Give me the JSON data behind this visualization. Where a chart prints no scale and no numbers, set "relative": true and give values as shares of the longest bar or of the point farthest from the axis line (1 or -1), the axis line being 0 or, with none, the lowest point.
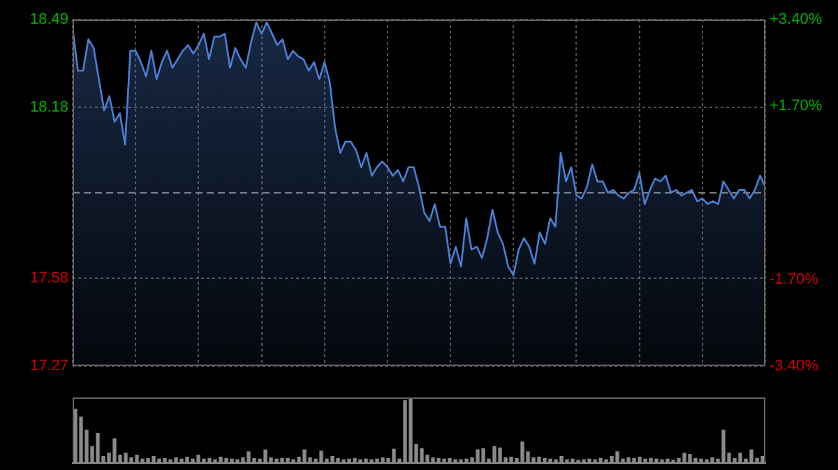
{
  "chart_data": [
    {
      "type": "area",
      "categories": [
        null,
        null,
        null,
        null,
        null,
        null,
        null,
        null,
        null,
        null,
        null,
        null,
        null,
        null,
        null,
        null,
        null,
        null,
        null,
        null,
        null,
        null,
        null,
        null,
        null,
        null,
        null,
        null,
        null,
        null,
        null,
        null,
        null,
        null,
        null,
        null,
        null,
        null,
        null,
        null,
        null,
        null,
        null,
        null,
        null,
        null,
        null,
        null,
        null,
        null,
        null,
        null,
        null,
        null,
        null,
        null,
        null,
        null,
        null,
        null,
        null,
        null,
        null,
        null,
        null,
        null,
        null,
        null,
        null,
        null,
        null,
        null,
        null,
        null,
        null,
        null,
        null,
        null,
        null,
        null,
        null,
        null,
        null,
        null,
        null,
        null,
        null,
        null,
        null,
        null,
        null,
        null,
        null,
        null,
        null,
        null,
        null,
        null,
        null,
        null,
        null,
        null,
        null,
        null,
        null,
        null,
        null,
        null,
        null,
        null,
        null,
        null,
        null,
        null,
        null,
        null,
        null,
        null,
        null,
        null,
        null,
        null,
        null,
        null,
        null,
        null,
        null,
        null,
        null,
        null,
        null,
        null,
        null
      ],
      "ylim": [
        17.27,
        18.49
      ],
      "yticks": [
        17.27,
        17.58,
        18.18,
        18.49
      ],
      "y2lim": [
        -3.4,
        3.4
      ],
      "y2ticks": [
        {
          "value": -3.4,
          "label": "-3.40%"
        },
        {
          "value": -1.7,
          "label": "-1.70%"
        },
        {
          "value": 1.7,
          "label": "+1.70%"
        },
        {
          "value": 3.4,
          "label": "+3.40%"
        }
      ],
      "grid": true,
      "legend": false,
      "tick_labels": "y",
      "marker": "none",
      "line_style": "solid",
      "ref_lines": [
        {
          "axis": "y",
          "value": 17.88,
          "label": null
        }
      ],
      "series": [
        {
          "color": "#4a7fd4",
          "values": [
            18.46,
            18.31,
            18.31,
            18.42,
            18.39,
            18.28,
            18.17,
            18.22,
            18.13,
            18.16,
            18.05,
            18.38,
            18.38,
            18.34,
            18.29,
            18.38,
            18.28,
            18.34,
            18.38,
            18.32,
            18.35,
            18.38,
            18.4,
            18.37,
            18.4,
            18.44,
            18.35,
            18.43,
            18.43,
            18.44,
            18.32,
            18.39,
            18.35,
            18.32,
            18.41,
            18.48,
            18.44,
            18.48,
            18.44,
            18.4,
            18.42,
            18.35,
            18.38,
            18.36,
            18.35,
            18.31,
            18.34,
            18.28,
            18.34,
            18.27,
            18.11,
            18.02,
            18.06,
            18.06,
            18.03,
            17.97,
            18.02,
            17.94,
            17.97,
            17.99,
            17.97,
            17.94,
            17.96,
            17.92,
            17.97,
            17.97,
            17.9,
            17.81,
            17.78,
            17.84,
            17.76,
            17.76,
            17.63,
            17.69,
            17.62,
            17.79,
            17.68,
            17.69,
            17.65,
            17.72,
            17.82,
            17.74,
            17.7,
            17.62,
            17.59,
            17.68,
            17.72,
            17.69,
            17.63,
            17.74,
            17.7,
            17.79,
            17.76,
            18.02,
            17.92,
            17.97,
            17.87,
            17.86,
            17.9,
            17.98,
            17.92,
            17.92,
            17.88,
            17.89,
            17.87,
            17.86,
            17.88,
            17.89,
            17.95,
            17.84,
            17.89,
            17.93,
            17.92,
            17.94,
            17.88,
            17.89,
            17.87,
            17.88,
            17.89,
            17.85,
            17.86,
            17.84,
            17.85,
            17.84,
            17.92,
            17.89,
            17.86,
            17.89,
            17.89,
            17.86,
            17.89,
            17.94,
            17.9
          ]
        }
      ]
    },
    {
      "type": "bar",
      "relative": true,
      "legend": false,
      "tick_labels": false,
      "categories": [
        null,
        null,
        null,
        null,
        null,
        null,
        null,
        null,
        null,
        null,
        null,
        null,
        null,
        null,
        null,
        null,
        null,
        null,
        null,
        null,
        null,
        null,
        null,
        null,
        null,
        null,
        null,
        null,
        null,
        null,
        null,
        null,
        null,
        null,
        null,
        null,
        null,
        null,
        null,
        null,
        null,
        null,
        null,
        null,
        null,
        null,
        null,
        null,
        null,
        null,
        null,
        null,
        null,
        null,
        null,
        null,
        null,
        null,
        null,
        null,
        null,
        null,
        null,
        null,
        null,
        null,
        null,
        null,
        null,
        null,
        null,
        null,
        null,
        null,
        null,
        null,
        null,
        null,
        null,
        null,
        null,
        null,
        null,
        null,
        null,
        null,
        null,
        null,
        null,
        null,
        null,
        null,
        null,
        null,
        null,
        null,
        null,
        null,
        null,
        null,
        null,
        null,
        null,
        null,
        null,
        null,
        null,
        null,
        null,
        null,
        null,
        null,
        null,
        null,
        null,
        null,
        null,
        null,
        null,
        null,
        null,
        null,
        null,
        null
      ],
      "color": "#8a8a8a",
      "values": [
        0.82,
        0.7,
        0.5,
        0.25,
        0.45,
        0.1,
        0.15,
        0.37,
        0.12,
        0.15,
        0.08,
        0.12,
        0.06,
        0.07,
        0.1,
        0.06,
        0.07,
        0.05,
        0.08,
        0.06,
        0.09,
        0.06,
        0.12,
        0.06,
        0.07,
        0.05,
        0.09,
        0.07,
        0.06,
        0.05,
        0.08,
        0.17,
        0.07,
        0.06,
        0.2,
        0.08,
        0.06,
        0.07,
        0.07,
        0.05,
        0.09,
        0.2,
        0.08,
        0.06,
        0.18,
        0.06,
        0.1,
        0.07,
        0.05,
        0.06,
        0.07,
        0.05,
        0.06,
        0.05,
        0.06,
        0.08,
        0.07,
        0.21,
        0.06,
        0.95,
        1,
        0.28,
        0.22,
        0.12,
        0.08,
        0.07,
        0.06,
        0.07,
        0.05,
        0.05,
        0.06,
        0.08,
        0.2,
        0.22,
        0.06,
        0.25,
        0.23,
        0.08,
        0.09,
        0.07,
        0.32,
        0.17,
        0.08,
        0.09,
        0.07,
        0.06,
        0.05,
        0.1,
        0.05,
        0.06,
        0.04,
        0.05,
        0.06,
        0.05,
        0.07,
        0.05,
        0.1,
        0.17,
        0.06,
        0.08,
        0.07,
        0.09,
        0.06,
        0.07,
        0.06,
        0.05,
        0.06,
        0.04,
        0.07,
        0.15,
        0.13,
        0.07,
        0.06,
        0.05,
        0.08,
        0.06,
        0.5,
        0.15,
        0.07,
        0.15,
        0.06,
        0.2,
        0.07,
        0.1
      ]
    }
  ]
}
